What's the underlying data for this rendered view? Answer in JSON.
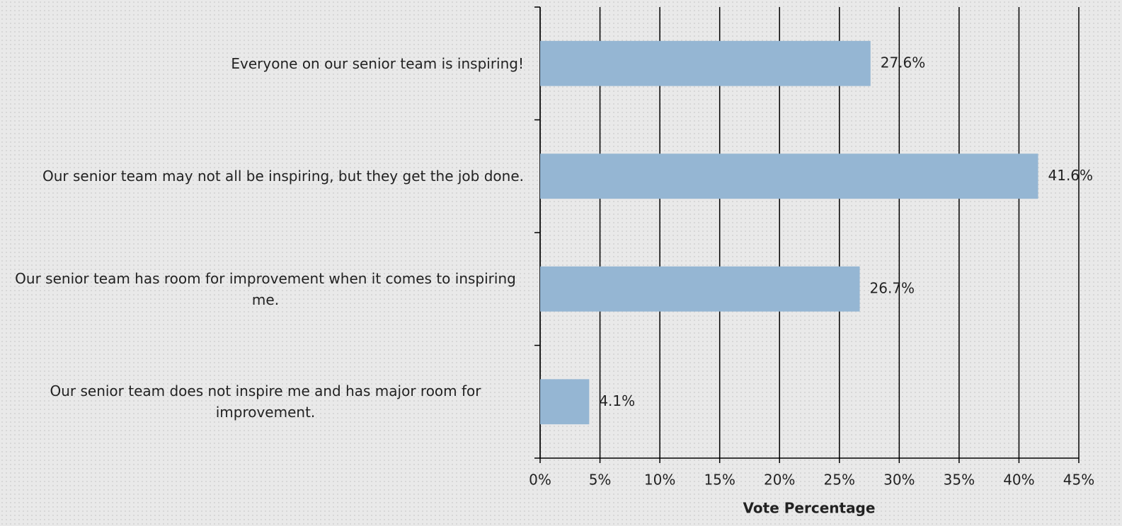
{
  "chart_data": {
    "type": "barh",
    "categories": [
      "Everyone on our senior team is inspiring!",
      "Our senior team may not all be inspiring, but they get the job done.",
      "Our senior team has room for improvement when it comes to inspiring me.",
      "Our senior team does not inspire me and has major room for improvement."
    ],
    "values": [
      27.6,
      41.6,
      26.7,
      4.1
    ],
    "value_labels": [
      "27.6%",
      "41.6%",
      "26.7%",
      "4.1%"
    ],
    "color": "#95b6d3",
    "xlabel": "Vote Percentage",
    "xlim": [
      0,
      45
    ],
    "xticks": [
      {
        "value": 0,
        "label": "0%"
      },
      {
        "value": 5,
        "label": "5%"
      },
      {
        "value": 10,
        "label": "10%"
      },
      {
        "value": 15,
        "label": "15%"
      },
      {
        "value": 20,
        "label": "20%"
      },
      {
        "value": 25,
        "label": "25%"
      },
      {
        "value": 30,
        "label": "30%"
      },
      {
        "value": 35,
        "label": "35%"
      },
      {
        "value": 40,
        "label": "40%"
      },
      {
        "value": 45,
        "label": "45%"
      }
    ],
    "grid": true
  }
}
